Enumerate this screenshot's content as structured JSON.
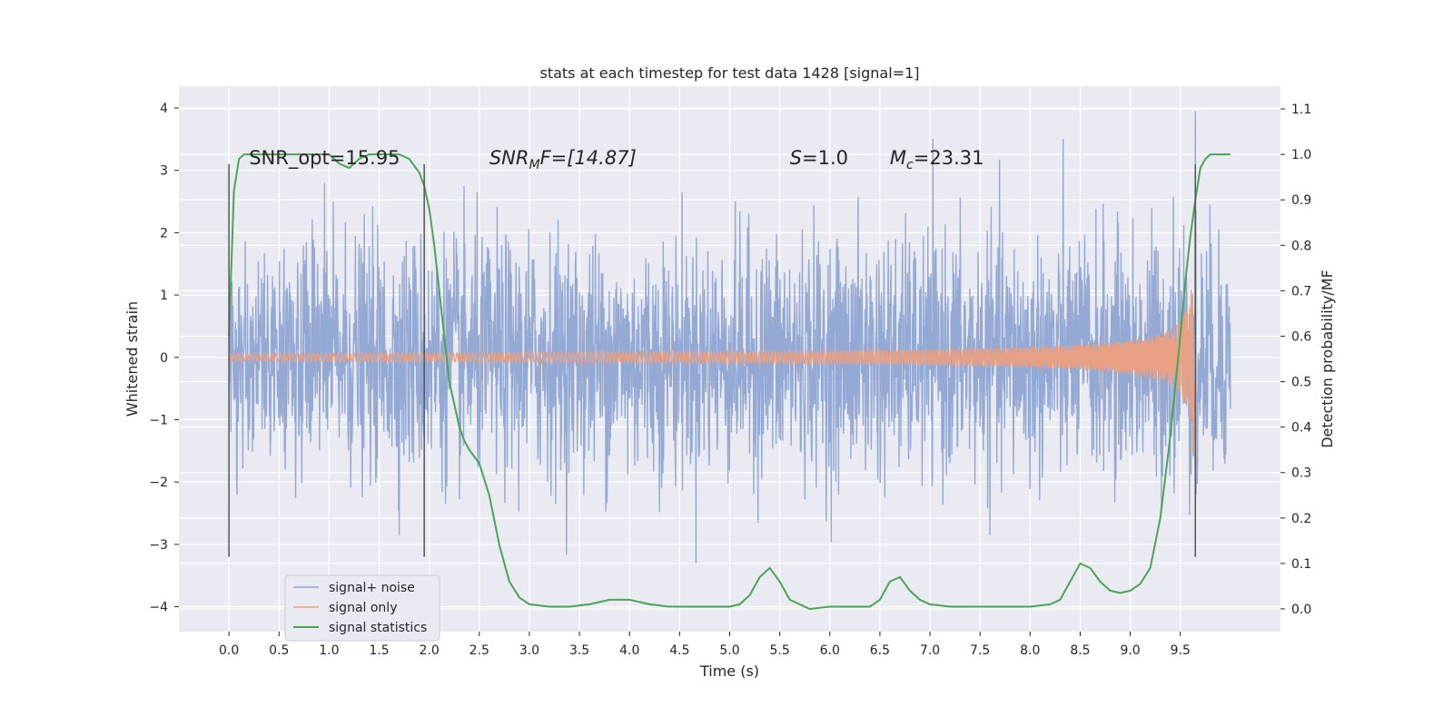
{
  "chart_data": {
    "type": "line",
    "title": "stats at each timestep for test data 1428 [signal=1]",
    "xlabel": "Time (s)",
    "ylabel": "Whitened strain",
    "ylabel_right": "Detection probability/MF",
    "xlim": [
      -0.5,
      10.5
    ],
    "ylim": [
      -4.4,
      4.35
    ],
    "ylim_right": [
      -0.05,
      1.15
    ],
    "x_ticks": [
      "0.0",
      "0.5",
      "1.0",
      "1.5",
      "2.0",
      "2.5",
      "3.0",
      "3.5",
      "4.0",
      "4.5",
      "5.0",
      "5.5",
      "6.0",
      "6.5",
      "7.0",
      "7.5",
      "8.0",
      "8.5",
      "9.0",
      "9.5"
    ],
    "y_ticks": [
      "4",
      "3",
      "2",
      "1",
      "0",
      "−1",
      "−2",
      "−3",
      "−4"
    ],
    "y_ticks_right": [
      "1.1",
      "1.0",
      "0.9",
      "0.8",
      "0.7",
      "0.6",
      "0.5",
      "0.4",
      "0.3",
      "0.2",
      "0.1",
      "0.0"
    ],
    "annotations": {
      "snr_opt": "SNR_opt=15.95",
      "snr_mf_prefix": "SNR",
      "snr_mf_sub": "M",
      "snr_mf_suffix": "F=[14.87]",
      "s_prefix": "S",
      "s_suffix": "=1.0",
      "mc_prefix": "M",
      "mc_sub": "c",
      "mc_suffix": "=23.31"
    },
    "vertical_markers": [
      0.0,
      1.95,
      9.65
    ],
    "series": [
      {
        "name": "signal+ noise",
        "color": "#8fa5d2",
        "type": "noise",
        "x_range": [
          0.0,
          10.0
        ]
      },
      {
        "name": "signal only",
        "color": "#e8a184",
        "type": "chirp",
        "x_range": [
          0.0,
          9.68
        ]
      },
      {
        "name": "signal statistics",
        "color": "#4aa557",
        "axis": "right",
        "x": [
          0.0,
          0.05,
          0.1,
          0.15,
          0.2,
          0.3,
          0.4,
          0.5,
          0.6,
          0.7,
          0.8,
          0.9,
          1.0,
          1.1,
          1.2,
          1.25,
          1.3,
          1.4,
          1.5,
          1.6,
          1.7,
          1.8,
          1.9,
          1.95,
          2.0,
          2.05,
          2.1,
          2.15,
          2.2,
          2.25,
          2.3,
          2.35,
          2.4,
          2.5,
          2.6,
          2.7,
          2.8,
          2.9,
          3.0,
          3.2,
          3.4,
          3.6,
          3.8,
          4.0,
          4.2,
          4.4,
          4.6,
          4.8,
          5.0,
          5.1,
          5.2,
          5.3,
          5.4,
          5.5,
          5.6,
          5.8,
          6.0,
          6.2,
          6.4,
          6.5,
          6.6,
          6.7,
          6.8,
          6.9,
          7.0,
          7.2,
          7.5,
          7.8,
          8.0,
          8.2,
          8.3,
          8.4,
          8.5,
          8.6,
          8.7,
          8.8,
          8.9,
          9.0,
          9.1,
          9.2,
          9.3,
          9.4,
          9.5,
          9.55,
          9.6,
          9.65,
          9.7,
          9.75,
          9.8,
          9.9,
          10.0
        ],
        "values": [
          0.6,
          0.92,
          0.99,
          1.0,
          1.0,
          1.0,
          1.0,
          1.0,
          1.0,
          1.0,
          1.0,
          1.0,
          1.0,
          0.98,
          0.97,
          0.98,
          0.99,
          1.0,
          1.0,
          1.0,
          1.0,
          0.99,
          0.96,
          0.93,
          0.88,
          0.8,
          0.7,
          0.6,
          0.5,
          0.45,
          0.4,
          0.37,
          0.35,
          0.32,
          0.25,
          0.14,
          0.06,
          0.025,
          0.01,
          0.005,
          0.005,
          0.01,
          0.02,
          0.02,
          0.01,
          0.005,
          0.005,
          0.005,
          0.005,
          0.01,
          0.03,
          0.07,
          0.09,
          0.06,
          0.02,
          0.0,
          0.005,
          0.005,
          0.005,
          0.02,
          0.06,
          0.07,
          0.04,
          0.02,
          0.01,
          0.005,
          0.005,
          0.005,
          0.005,
          0.01,
          0.02,
          0.06,
          0.1,
          0.09,
          0.06,
          0.04,
          0.035,
          0.04,
          0.055,
          0.09,
          0.2,
          0.38,
          0.6,
          0.72,
          0.82,
          0.9,
          0.97,
          0.99,
          1.0,
          1.0,
          1.0
        ]
      }
    ],
    "legend": {
      "position": "lower-left"
    },
    "grid": true,
    "background": "#eaeaf2"
  }
}
